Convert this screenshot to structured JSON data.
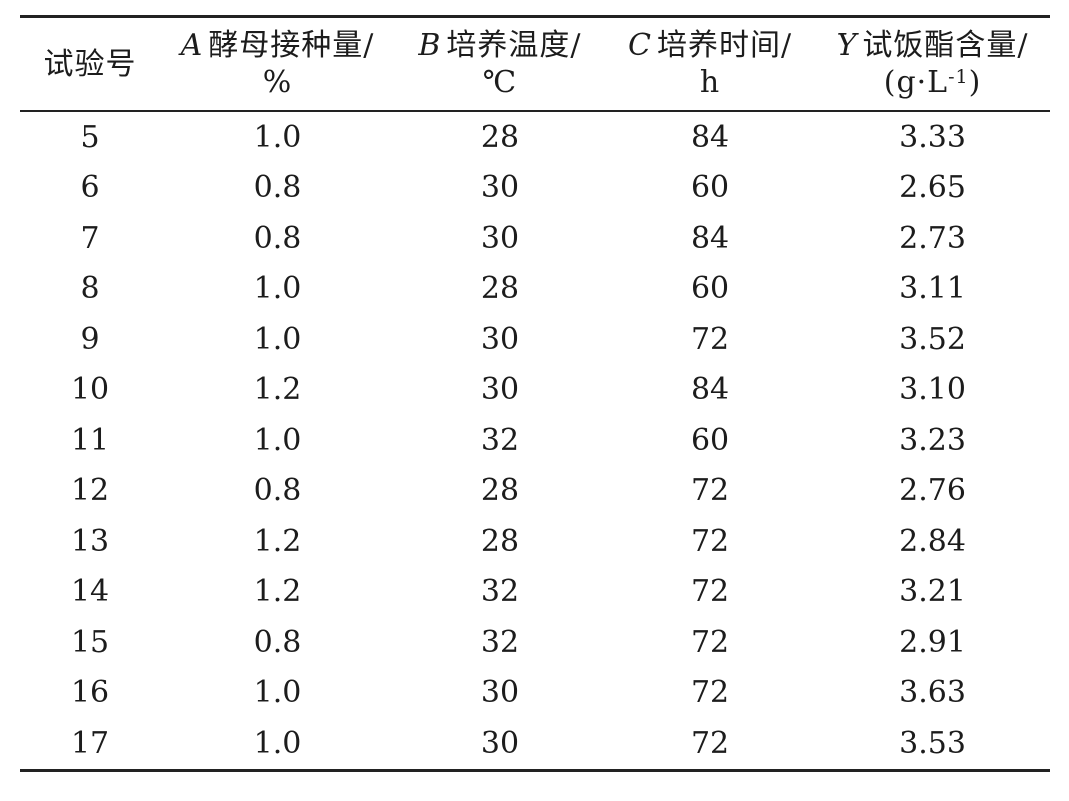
{
  "table": {
    "columns": [
      {
        "var": "",
        "label": "试验号",
        "unit": ""
      },
      {
        "var": "A",
        "label": "酵母接种量/",
        "unit": "%"
      },
      {
        "var": "B",
        "label": "培养温度/",
        "unit": "℃"
      },
      {
        "var": "C",
        "label": "培养时间/",
        "unit": "h"
      },
      {
        "var": "Y",
        "label": "试饭酯含量/",
        "unit": "(g·L^{-1})"
      }
    ],
    "rows": [
      [
        "5",
        "1.0",
        "28",
        "84",
        "3.33"
      ],
      [
        "6",
        "0.8",
        "30",
        "60",
        "2.65"
      ],
      [
        "7",
        "0.8",
        "30",
        "84",
        "2.73"
      ],
      [
        "8",
        "1.0",
        "28",
        "60",
        "3.11"
      ],
      [
        "9",
        "1.0",
        "30",
        "72",
        "3.52"
      ],
      [
        "10",
        "1.2",
        "30",
        "84",
        "3.10"
      ],
      [
        "11",
        "1.0",
        "32",
        "60",
        "3.23"
      ],
      [
        "12",
        "0.8",
        "28",
        "72",
        "2.76"
      ],
      [
        "13",
        "1.2",
        "28",
        "72",
        "2.84"
      ],
      [
        "14",
        "1.2",
        "32",
        "72",
        "3.21"
      ],
      [
        "15",
        "0.8",
        "32",
        "72",
        "2.91"
      ],
      [
        "16",
        "1.0",
        "30",
        "72",
        "3.63"
      ],
      [
        "17",
        "1.0",
        "30",
        "72",
        "3.53"
      ]
    ],
    "colors": {
      "text": "#1c1c1c",
      "rule": "#222222",
      "background": "#ffffff"
    }
  },
  "chart_data": {
    "type": "table",
    "title": "",
    "categories": [
      "试验号",
      "A 酵母接种量/%",
      "B 培养温度/℃",
      "C 培养时间/h",
      "Y 试饭酯含量/(g·L-1)"
    ],
    "series": [
      {
        "name": "试验号",
        "values": [
          5,
          6,
          7,
          8,
          9,
          10,
          11,
          12,
          13,
          14,
          15,
          16,
          17
        ]
      },
      {
        "name": "A 酵母接种量/%",
        "values": [
          1.0,
          0.8,
          0.8,
          1.0,
          1.0,
          1.2,
          1.0,
          0.8,
          1.2,
          1.2,
          0.8,
          1.0,
          1.0
        ]
      },
      {
        "name": "B 培养温度/℃",
        "values": [
          28,
          30,
          30,
          28,
          30,
          30,
          32,
          28,
          28,
          32,
          32,
          30,
          30
        ]
      },
      {
        "name": "C 培养时间/h",
        "values": [
          84,
          60,
          84,
          60,
          72,
          84,
          60,
          72,
          72,
          72,
          72,
          72,
          72
        ]
      },
      {
        "name": "Y 试饭酯含量/(g·L-1)",
        "values": [
          3.33,
          2.65,
          2.73,
          3.11,
          3.52,
          3.1,
          3.23,
          2.76,
          2.84,
          3.21,
          2.91,
          3.63,
          3.53
        ]
      }
    ]
  }
}
